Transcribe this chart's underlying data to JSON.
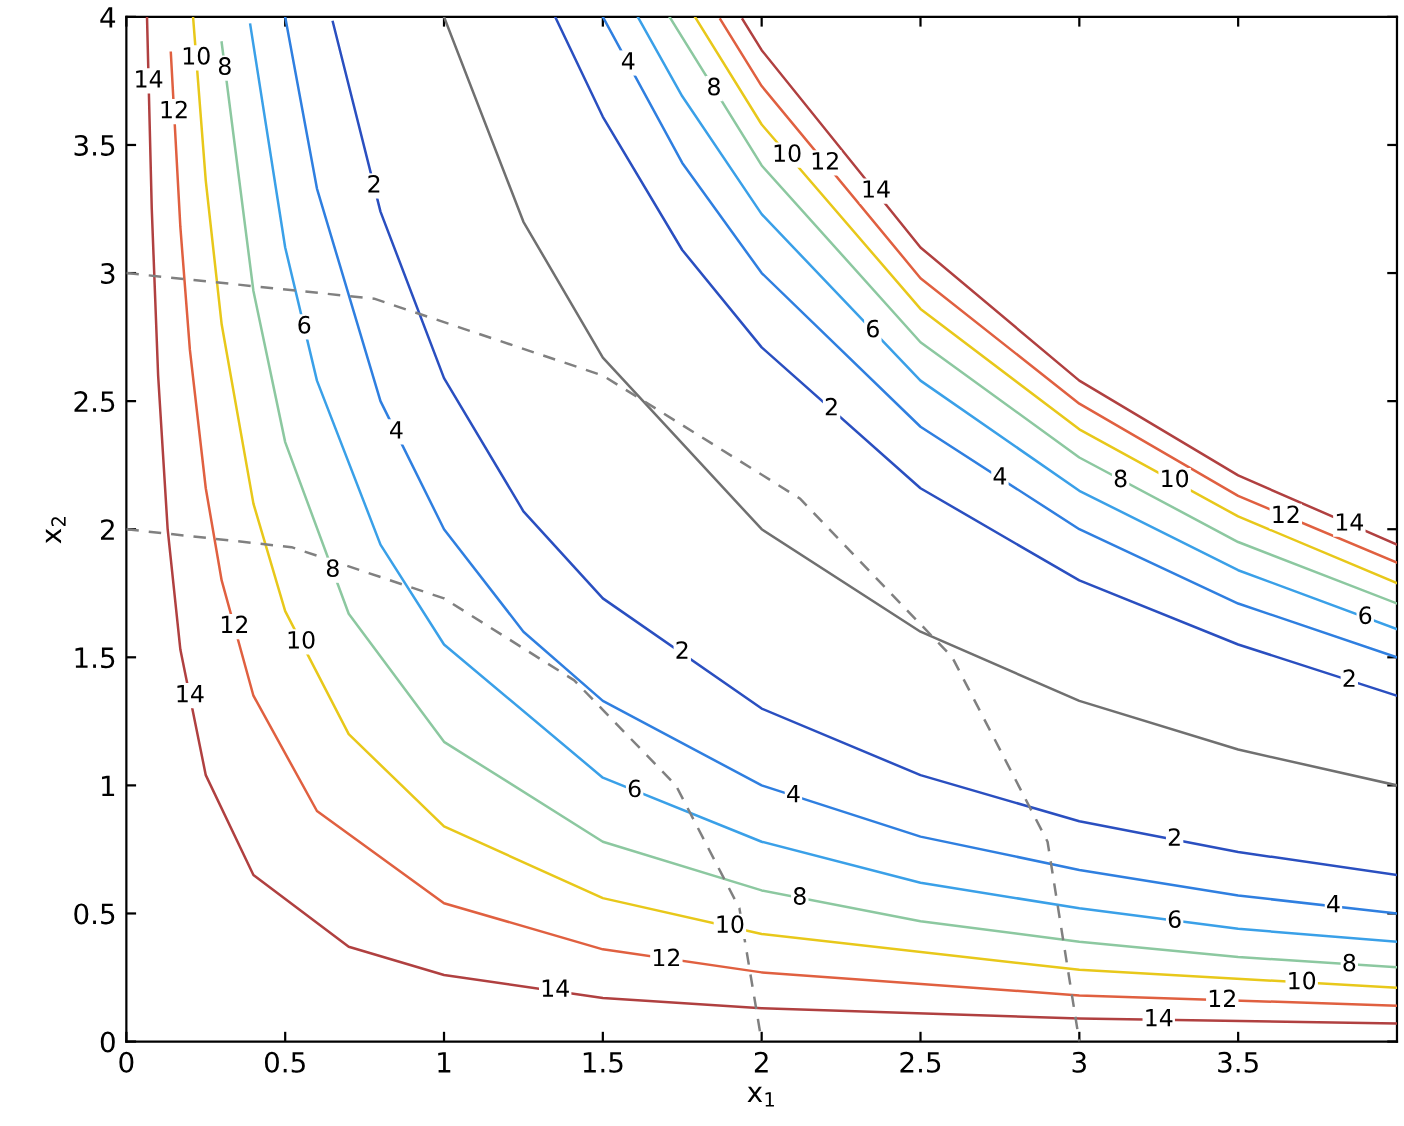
{
  "chart_data": {
    "type": "line",
    "xlabel": "x$_{1}$",
    "ylabel": "x$_{2}$",
    "xlim": [
      0,
      4
    ],
    "ylim": [
      0,
      4
    ],
    "xticks": [
      0,
      0.5,
      1,
      1.5,
      2,
      2.5,
      3,
      3.5
    ],
    "yticks": [
      0,
      0.5,
      1,
      1.5,
      2,
      2.5,
      3,
      3.5,
      4
    ],
    "grid": false,
    "marker": "none",
    "series": [
      {
        "color": "#707070",
        "x": [
          1,
          1.25,
          1.5,
          2,
          2.5,
          3,
          3.5,
          4
        ],
        "values": [
          4,
          3.2,
          2.67,
          2,
          1.6,
          1.33,
          1.14,
          1
        ]
      },
      {
        "color": "#2a4fc0",
        "x": [
          0.65,
          0.8,
          1,
          1.25,
          1.5,
          2,
          2.5,
          3,
          3.5,
          4
        ],
        "values": [
          3.98,
          3.24,
          2.59,
          2.07,
          1.73,
          1.3,
          1.04,
          0.86,
          0.74,
          0.65
        ]
      },
      {
        "color": "#2f7fe0",
        "x": [
          0.5,
          0.6,
          0.8,
          1,
          1.25,
          1.5,
          2,
          2.5,
          3,
          3.5,
          4
        ],
        "values": [
          4,
          3.33,
          2.5,
          2,
          1.6,
          1.33,
          1,
          0.8,
          0.67,
          0.57,
          0.5
        ]
      },
      {
        "color": "#3aa0e8",
        "x": [
          0.39,
          0.5,
          0.6,
          0.8,
          1,
          1.5,
          2,
          2.5,
          3,
          3.5,
          4
        ],
        "values": [
          3.97,
          3.1,
          2.58,
          1.94,
          1.55,
          1.03,
          0.78,
          0.62,
          0.52,
          0.44,
          0.39
        ]
      },
      {
        "color": "#8cc8a0",
        "x": [
          0.3,
          0.4,
          0.5,
          0.7,
          1,
          1.5,
          2,
          2.5,
          3,
          3.5,
          4
        ],
        "values": [
          3.9,
          2.93,
          2.34,
          1.67,
          1.17,
          0.78,
          0.59,
          0.47,
          0.39,
          0.33,
          0.29
        ]
      },
      {
        "color": "#e8c81a",
        "x": [
          0.21,
          0.25,
          0.3,
          0.4,
          0.5,
          0.7,
          1,
          1.5,
          2,
          3,
          4
        ],
        "values": [
          4,
          3.36,
          2.8,
          2.1,
          1.68,
          1.2,
          0.84,
          0.56,
          0.42,
          0.28,
          0.21
        ]
      },
      {
        "color": "#e06040",
        "x": [
          0.14,
          0.17,
          0.2,
          0.25,
          0.3,
          0.4,
          0.6,
          1,
          1.5,
          2,
          3,
          4
        ],
        "values": [
          3.86,
          3.18,
          2.7,
          2.16,
          1.8,
          1.35,
          0.9,
          0.54,
          0.36,
          0.27,
          0.18,
          0.14
        ]
      },
      {
        "color": "#b04040",
        "x": [
          0.065,
          0.08,
          0.1,
          0.13,
          0.17,
          0.25,
          0.4,
          0.7,
          1,
          1.5,
          2,
          3,
          4
        ],
        "values": [
          4,
          3.25,
          2.6,
          2,
          1.53,
          1.04,
          0.65,
          0.37,
          0.26,
          0.17,
          0.13,
          0.09,
          0.07
        ]
      },
      {
        "color": "#2a4fc0",
        "x": [
          1.35,
          1.5,
          1.75,
          2,
          2.5,
          3,
          3.5,
          4
        ],
        "values": [
          4,
          3.61,
          3.09,
          2.71,
          2.16,
          1.8,
          1.55,
          1.35
        ]
      },
      {
        "color": "#2f7fe0",
        "x": [
          1.5,
          1.75,
          2,
          2.5,
          3,
          3.5,
          4
        ],
        "values": [
          4,
          3.43,
          3,
          2.4,
          2,
          1.71,
          1.5
        ]
      },
      {
        "color": "#3aa0e8",
        "x": [
          1.61,
          1.75,
          2,
          2.5,
          3,
          3.5,
          4
        ],
        "values": [
          4,
          3.69,
          3.23,
          2.58,
          2.15,
          1.84,
          1.61
        ]
      },
      {
        "color": "#8cc8a0",
        "x": [
          1.71,
          2,
          2.5,
          3,
          3.5,
          4
        ],
        "values": [
          4,
          3.42,
          2.73,
          2.28,
          1.95,
          1.71
        ]
      },
      {
        "color": "#e8c81a",
        "x": [
          1.79,
          2,
          2.5,
          3,
          3.5,
          4
        ],
        "values": [
          4,
          3.58,
          2.86,
          2.39,
          2.05,
          1.79
        ]
      },
      {
        "color": "#e06040",
        "x": [
          1.87,
          2,
          2.5,
          3,
          3.5,
          4
        ],
        "values": [
          3.99,
          3.73,
          2.98,
          2.49,
          2.13,
          1.87
        ]
      },
      {
        "color": "#b04040",
        "x": [
          1.94,
          2,
          2.5,
          3,
          3.5,
          4
        ],
        "values": [
          3.99,
          3.87,
          3.1,
          2.58,
          2.21,
          1.94
        ]
      },
      {
        "color": "#808080",
        "line_style": "dashed",
        "x": [
          0,
          0.52,
          1,
          1.41,
          1.73,
          1.93,
          2
        ],
        "values": [
          2,
          1.93,
          1.73,
          1.41,
          1,
          0.52,
          0
        ]
      },
      {
        "color": "#808080",
        "line_style": "dashed",
        "x": [
          0,
          0.78,
          1.5,
          2.12,
          2.6,
          2.9,
          3
        ],
        "values": [
          3,
          2.9,
          2.6,
          2.12,
          1.5,
          0.78,
          0
        ]
      }
    ],
    "annotations": [
      {
        "text": "2",
        "x": 0.78,
        "y": 3.34
      },
      {
        "text": "4",
        "x": 0.85,
        "y": 2.38
      },
      {
        "text": "6",
        "x": 0.56,
        "y": 2.79
      },
      {
        "text": "8",
        "x": 0.31,
        "y": 3.8
      },
      {
        "text": "10",
        "x": 0.22,
        "y": 3.84
      },
      {
        "text": "12",
        "x": 0.15,
        "y": 3.63
      },
      {
        "text": "14",
        "x": 0.07,
        "y": 3.75
      },
      {
        "text": "8",
        "x": 0.65,
        "y": 1.84
      },
      {
        "text": "10",
        "x": 0.55,
        "y": 1.56
      },
      {
        "text": "12",
        "x": 0.34,
        "y": 1.62
      },
      {
        "text": "14",
        "x": 0.2,
        "y": 1.35
      },
      {
        "text": "2",
        "x": 1.75,
        "y": 1.52
      },
      {
        "text": "6",
        "x": 1.6,
        "y": 0.98
      },
      {
        "text": "4",
        "x": 2.1,
        "y": 0.96
      },
      {
        "text": "8",
        "x": 2.12,
        "y": 0.56
      },
      {
        "text": "10",
        "x": 1.9,
        "y": 0.45
      },
      {
        "text": "12",
        "x": 1.7,
        "y": 0.32
      },
      {
        "text": "14",
        "x": 1.35,
        "y": 0.2
      },
      {
        "text": "2",
        "x": 3.3,
        "y": 0.79
      },
      {
        "text": "4",
        "x": 3.8,
        "y": 0.53
      },
      {
        "text": "6",
        "x": 3.3,
        "y": 0.47
      },
      {
        "text": "8",
        "x": 3.85,
        "y": 0.3
      },
      {
        "text": "10",
        "x": 3.7,
        "y": 0.23
      },
      {
        "text": "12",
        "x": 3.45,
        "y": 0.16
      },
      {
        "text": "14",
        "x": 3.25,
        "y": 0.085
      },
      {
        "text": "4",
        "x": 1.58,
        "y": 3.82
      },
      {
        "text": "8",
        "x": 1.85,
        "y": 3.72
      },
      {
        "text": "10",
        "x": 2.08,
        "y": 3.46
      },
      {
        "text": "12",
        "x": 2.2,
        "y": 3.43
      },
      {
        "text": "14",
        "x": 2.36,
        "y": 3.32
      },
      {
        "text": "6",
        "x": 2.35,
        "y": 2.775
      },
      {
        "text": "2",
        "x": 2.22,
        "y": 2.47
      },
      {
        "text": "4",
        "x": 2.75,
        "y": 2.2
      },
      {
        "text": "8",
        "x": 3.13,
        "y": 2.19
      },
      {
        "text": "10",
        "x": 3.3,
        "y": 2.19
      },
      {
        "text": "12",
        "x": 3.65,
        "y": 2.05
      },
      {
        "text": "14",
        "x": 3.85,
        "y": 2.02
      },
      {
        "text": "6",
        "x": 3.9,
        "y": 1.656
      },
      {
        "text": "2",
        "x": 3.85,
        "y": 1.41
      }
    ]
  }
}
